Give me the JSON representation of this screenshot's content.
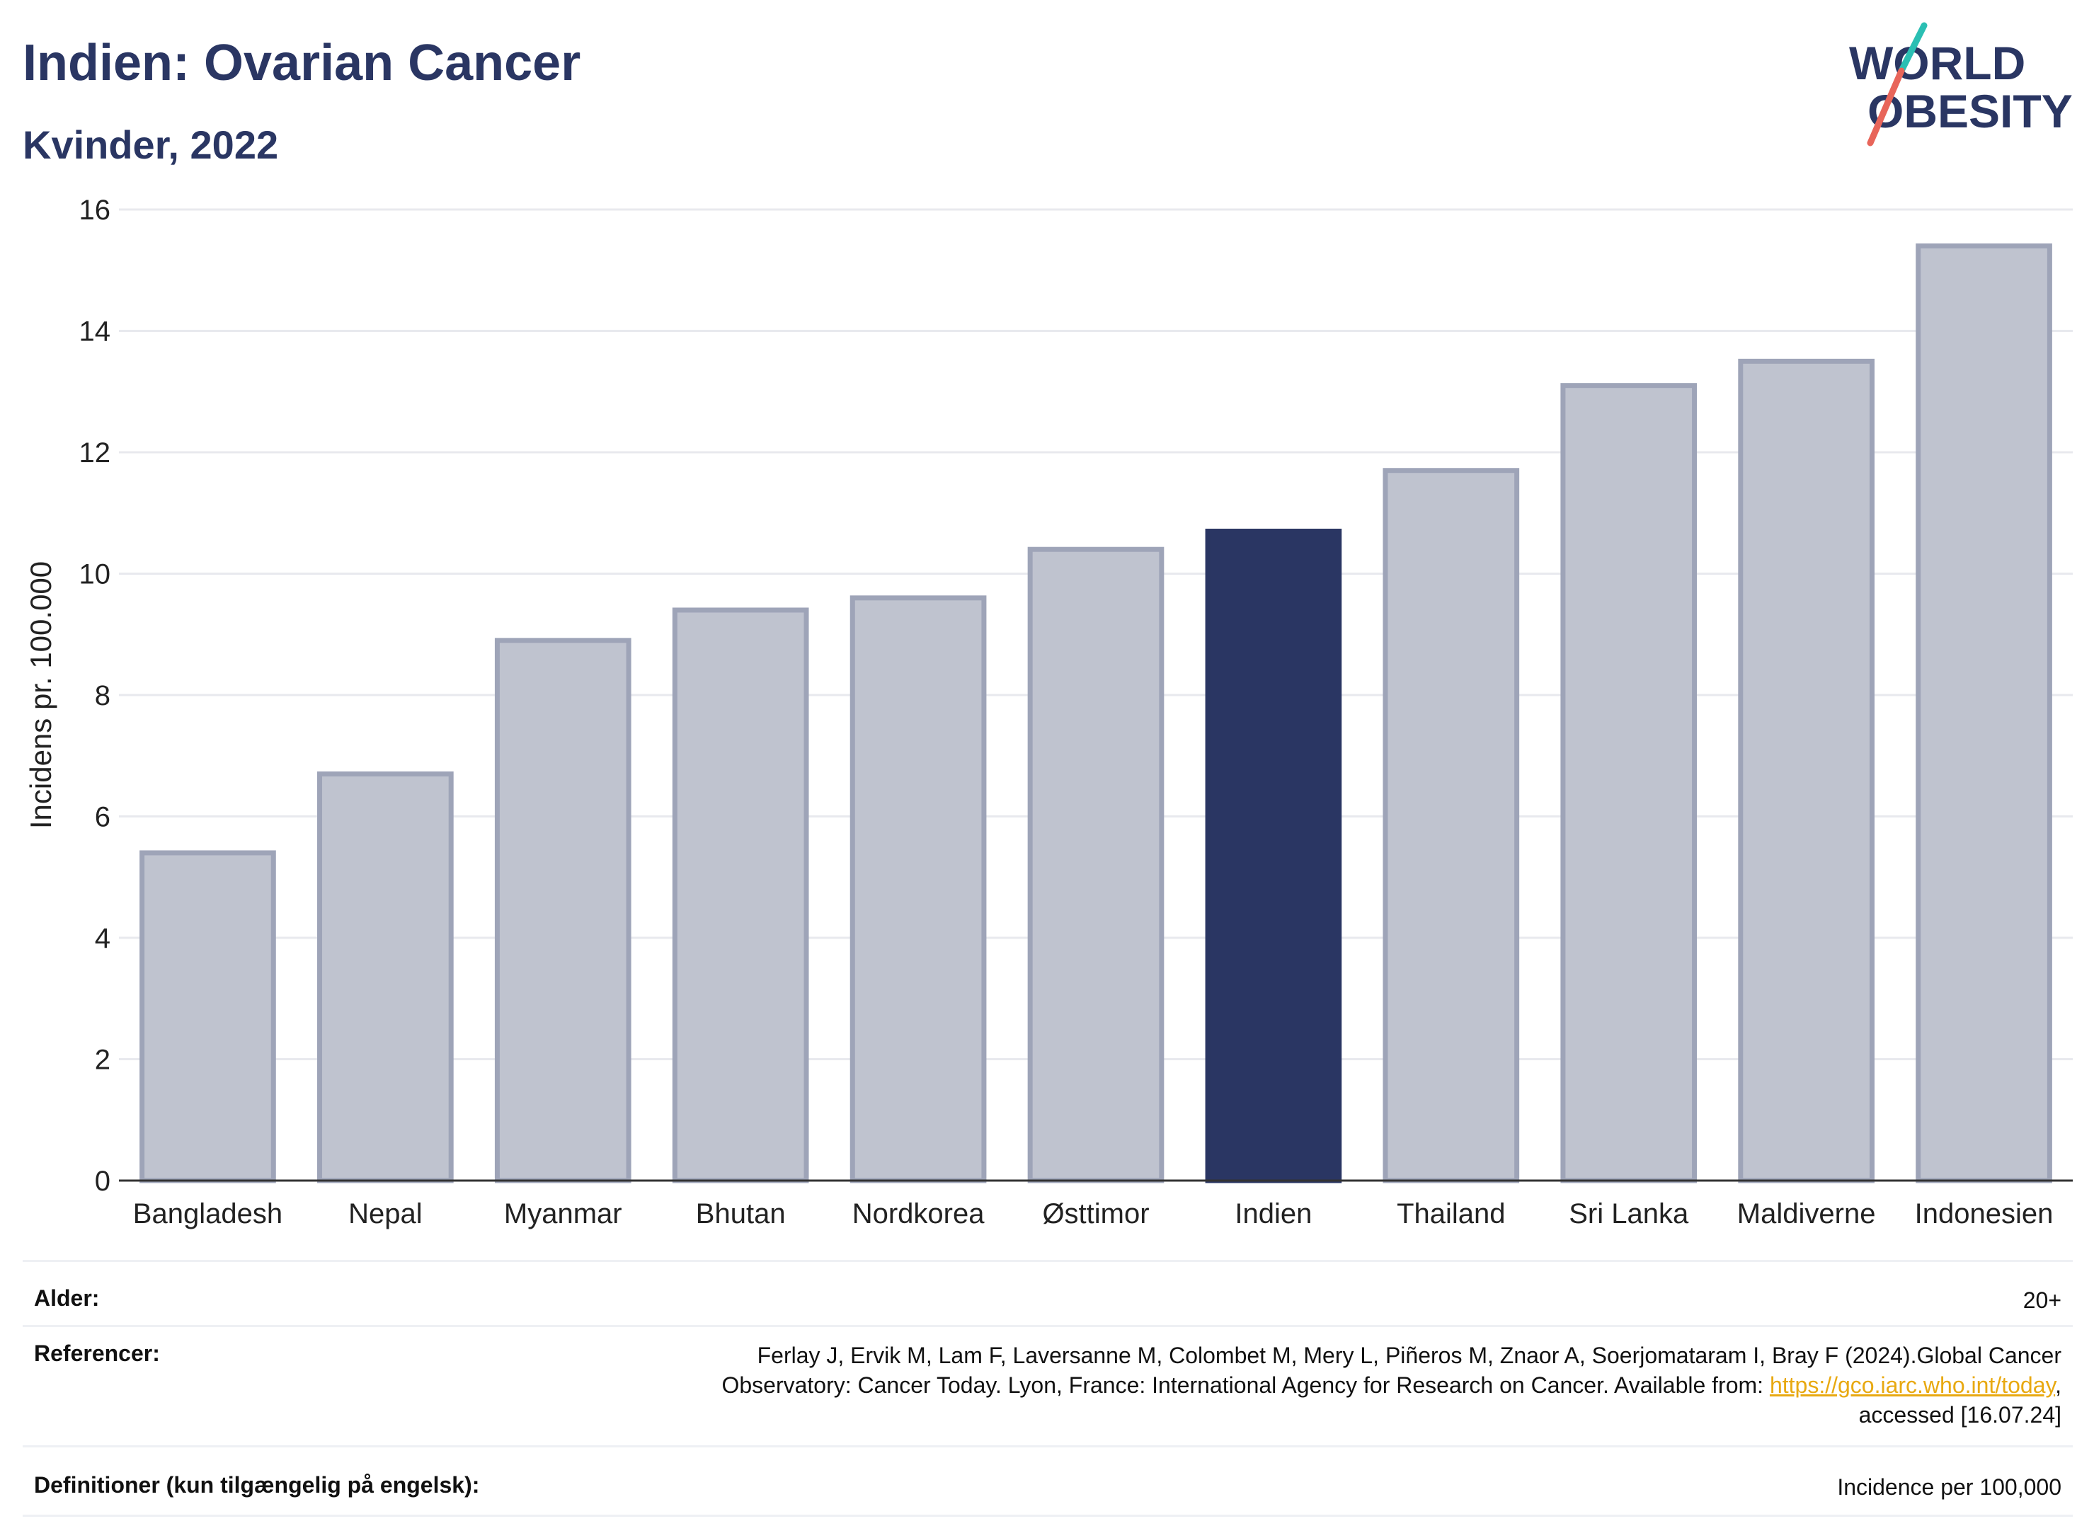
{
  "header": {
    "title": "Indien: Ovarian Cancer",
    "subtitle": "Kvinder, 2022"
  },
  "logo": {
    "line1": "WORLD",
    "line2": "OBESITY",
    "colors": {
      "text": "#2a3663",
      "slash_teal": "#2bbfb3",
      "slash_red": "#e8655a"
    }
  },
  "chart_data": {
    "type": "bar",
    "title": "Indien: Ovarian Cancer",
    "subtitle": "Kvinder, 2022",
    "xlabel": "",
    "ylabel": "Incidens pr. 100.000",
    "ylim": [
      0,
      16
    ],
    "yticks": [
      0,
      2,
      4,
      6,
      8,
      10,
      12,
      14,
      16
    ],
    "grid": true,
    "categories": [
      "Bangladesh",
      "Nepal",
      "Myanmar",
      "Bhutan",
      "Nordkorea",
      "Østtimor",
      "Indien",
      "Thailand",
      "Sri Lanka",
      "Maldiverne",
      "Indonesien"
    ],
    "values": [
      5.4,
      6.7,
      8.9,
      9.4,
      9.6,
      10.4,
      10.7,
      11.7,
      13.1,
      13.5,
      15.4
    ],
    "highlight": "Indien",
    "colors": {
      "highlight": "#2a3663",
      "other_fill": "#bfc3cf",
      "other_stroke": "#9ea4b8"
    }
  },
  "meta": {
    "age_label": "Alder:",
    "age_value": "20+",
    "refs_label": "Referencer:",
    "refs_line1": "Ferlay J, Ervik M, Lam F, Laversanne M, Colombet M, Mery L, Piñeros M, Znaor A, Soerjomataram I, Bray F (2024).Global Cancer",
    "refs_line2_pre": "Observatory: Cancer Today. Lyon, France: International Agency for Research on Cancer. Available from: ",
    "refs_link": "https://gco.iarc.who.int/today",
    "refs_line2_post": ",",
    "refs_line3": "accessed [16.07.24]",
    "def_label": "Definitioner (kun tilgængelig på engelsk):",
    "def_value": "Incidence per 100,000"
  }
}
